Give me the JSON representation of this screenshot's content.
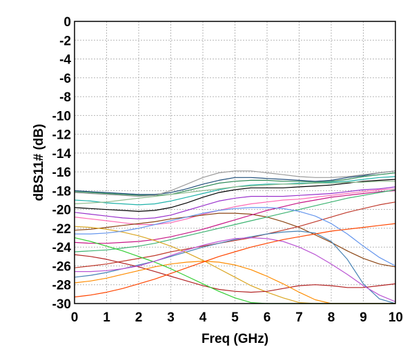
{
  "chart_data": {
    "type": "line",
    "title": "",
    "xlabel": "Freq (GHz)",
    "ylabel": "dBS11# (dB)",
    "xlim": [
      0,
      10
    ],
    "ylim": [
      -30,
      0
    ],
    "x_ticks": [
      "0",
      "1",
      "2",
      "3",
      "4",
      "5",
      "6",
      "7",
      "8",
      "9",
      "10"
    ],
    "y_ticks": [
      "0",
      "-2",
      "-4",
      "-6",
      "-8",
      "-10",
      "-12",
      "-14",
      "-16",
      "-18",
      "-20",
      "-22",
      "-24",
      "-26",
      "-28",
      "-30"
    ],
    "grid": true,
    "legend": "none",
    "x": [
      0,
      0.5,
      1,
      1.5,
      2,
      2.5,
      3,
      3.5,
      4,
      4.5,
      5,
      5.5,
      6,
      6.5,
      7,
      7.5,
      8,
      8.5,
      9,
      9.5,
      10
    ],
    "series": [
      {
        "color": "#1f4e79",
        "values": [
          -18.0,
          -18.1,
          -18.2,
          -18.3,
          -18.4,
          -18.4,
          -18.2,
          -17.8,
          -17.3,
          -16.9,
          -16.6,
          -16.6,
          -16.7,
          -16.8,
          -16.9,
          -17.0,
          -16.9,
          -16.6,
          -16.4,
          -16.1,
          -15.9
        ]
      },
      {
        "color": "#2e8b57",
        "values": [
          -18.1,
          -18.2,
          -18.3,
          -18.4,
          -18.5,
          -18.5,
          -18.4,
          -18.0,
          -17.6,
          -17.2,
          -17.0,
          -16.9,
          -16.9,
          -17.0,
          -17.0,
          -17.1,
          -17.0,
          -16.8,
          -16.5,
          -16.3,
          -16.1
        ]
      },
      {
        "color": "#9a9a9a",
        "values": [
          -18.2,
          -18.3,
          -18.4,
          -18.5,
          -18.6,
          -18.5,
          -18.0,
          -17.3,
          -16.6,
          -16.1,
          -15.9,
          -15.9,
          -16.1,
          -16.3,
          -16.5,
          -16.6,
          -16.6,
          -16.5,
          -16.3,
          -16.1,
          -15.9
        ]
      },
      {
        "color": "#20b2aa",
        "values": [
          -19.0,
          -19.1,
          -19.3,
          -19.4,
          -19.5,
          -19.4,
          -19.1,
          -18.7,
          -18.3,
          -17.9,
          -17.6,
          -17.4,
          -17.3,
          -17.3,
          -17.2,
          -17.2,
          -17.1,
          -17.0,
          -16.8,
          -16.6,
          -16.5
        ]
      },
      {
        "color": "#000000",
        "values": [
          -19.8,
          -19.9,
          -20.0,
          -20.1,
          -20.2,
          -20.1,
          -19.8,
          -19.3,
          -18.7,
          -18.2,
          -17.9,
          -17.7,
          -17.7,
          -17.7,
          -17.6,
          -17.5,
          -17.4,
          -17.2,
          -17.0,
          -16.9,
          -16.8
        ]
      },
      {
        "color": "#9932cc",
        "values": [
          -20.3,
          -20.5,
          -20.7,
          -20.9,
          -21.0,
          -20.9,
          -20.6,
          -20.1,
          -19.6,
          -19.1,
          -18.8,
          -18.6,
          -18.6,
          -18.6,
          -18.5,
          -18.4,
          -18.3,
          -18.1,
          -17.9,
          -17.8,
          -17.6
        ]
      },
      {
        "color": "#ff69b4",
        "values": [
          -20.8,
          -21.0,
          -21.2,
          -21.4,
          -21.6,
          -21.6,
          -21.4,
          -21.0,
          -20.5,
          -20.1,
          -19.7,
          -19.4,
          -19.2,
          -19.0,
          -18.9,
          -18.7,
          -18.5,
          -18.3,
          -18.1,
          -17.9,
          -17.8
        ]
      },
      {
        "color": "#8b4513",
        "values": [
          -22.2,
          -22.1,
          -21.9,
          -21.7,
          -21.5,
          -21.3,
          -21.0,
          -20.8,
          -20.6,
          -20.4,
          -20.4,
          -20.5,
          -20.8,
          -21.3,
          -21.9,
          -22.7,
          -23.5,
          -24.4,
          -25.2,
          -25.8,
          -26.1
        ]
      },
      {
        "color": "#c71585",
        "values": [
          -23.5,
          -23.6,
          -23.6,
          -23.5,
          -23.4,
          -23.2,
          -22.9,
          -22.5,
          -22.1,
          -21.6,
          -21.1,
          -20.6,
          -20.1,
          -19.7,
          -19.3,
          -19.0,
          -18.7,
          -18.5,
          -18.3,
          -18.1,
          -18.0
        ]
      },
      {
        "color": "#3cb371",
        "values": [
          -24.5,
          -24.4,
          -24.3,
          -24.1,
          -23.9,
          -23.6,
          -23.2,
          -22.8,
          -22.4,
          -22.0,
          -21.6,
          -21.2,
          -20.8,
          -20.4,
          -20.0,
          -19.6,
          -19.2,
          -18.8,
          -18.5,
          -18.2,
          -17.9
        ]
      },
      {
        "color": "#c0392b",
        "values": [
          -26.2,
          -26.0,
          -25.8,
          -25.5,
          -25.2,
          -24.9,
          -24.5,
          -24.2,
          -23.9,
          -23.6,
          -23.3,
          -23.0,
          -22.6,
          -22.2,
          -21.8,
          -21.3,
          -20.8,
          -20.3,
          -19.9,
          -19.5,
          -19.2
        ]
      },
      {
        "color": "#4682b4",
        "values": [
          -27.2,
          -27.0,
          -26.7,
          -26.3,
          -25.9,
          -25.5,
          -25.0,
          -24.5,
          -24.0,
          -23.6,
          -23.2,
          -22.9,
          -22.6,
          -22.4,
          -22.3,
          -22.5,
          -23.4,
          -25.3,
          -27.9,
          -29.5,
          -30.0
        ]
      },
      {
        "color": "#daa520",
        "values": [
          -21.8,
          -21.9,
          -22.1,
          -22.4,
          -22.8,
          -23.3,
          -23.9,
          -24.6,
          -25.4,
          -26.3,
          -27.2,
          -28.1,
          -28.8,
          -29.4,
          -29.9,
          -30.0,
          -30.0,
          -30.0,
          -30.0,
          -30.0,
          -30.0
        ]
      },
      {
        "color": "#b22222",
        "values": [
          -24.8,
          -25.0,
          -25.3,
          -25.7,
          -26.1,
          -26.6,
          -27.1,
          -27.6,
          -28.1,
          -28.5,
          -28.7,
          -28.8,
          -28.7,
          -28.4,
          -28.1,
          -28.0,
          -28.1,
          -28.3,
          -28.3,
          -28.1,
          -27.9
        ]
      },
      {
        "color": "#ff8c00",
        "values": [
          -27.8,
          -27.6,
          -27.3,
          -26.9,
          -26.5,
          -26.1,
          -25.8,
          -25.6,
          -25.5,
          -25.6,
          -25.9,
          -26.4,
          -27.1,
          -27.9,
          -28.8,
          -29.6,
          -30.0,
          -30.0,
          -30.0,
          -30.0,
          -30.0
        ]
      },
      {
        "color": "#6495ed",
        "values": [
          -22.6,
          -22.6,
          -22.5,
          -22.3,
          -22.0,
          -21.6,
          -21.2,
          -20.8,
          -20.4,
          -20.1,
          -19.9,
          -19.8,
          -19.8,
          -19.9,
          -20.2,
          -20.7,
          -21.5,
          -22.6,
          -23.9,
          -25.1,
          -26.0
        ]
      },
      {
        "color": "#32cd32",
        "values": [
          -23.0,
          -23.4,
          -23.9,
          -24.4,
          -25.0,
          -25.6,
          -26.3,
          -27.1,
          -27.9,
          -28.7,
          -29.4,
          -29.9,
          -30.0,
          -30.0,
          -30.0,
          -30.0,
          -30.0,
          -30.0,
          -30.0,
          -30.0,
          -30.0
        ]
      },
      {
        "color": "#8fbc8f",
        "values": [
          -19.4,
          -19.3,
          -19.2,
          -19.0,
          -18.8,
          -18.6,
          -18.4,
          -18.2,
          -18.0,
          -17.8,
          -17.6,
          -17.5,
          -17.4,
          -17.3,
          -17.3,
          -17.2,
          -17.2,
          -17.1,
          -17.1,
          -17.0,
          -17.0
        ]
      },
      {
        "color": "#ba55d3",
        "values": [
          -26.6,
          -26.6,
          -26.5,
          -26.3,
          -26.0,
          -25.5,
          -24.9,
          -24.3,
          -23.8,
          -23.4,
          -23.1,
          -23.0,
          -23.1,
          -23.4,
          -24.0,
          -24.8,
          -25.8,
          -26.9,
          -28.1,
          -29.1,
          -29.8
        ]
      },
      {
        "color": "#ff4500",
        "values": [
          -29.3,
          -29.1,
          -28.8,
          -28.4,
          -27.9,
          -27.4,
          -26.8,
          -26.2,
          -25.6,
          -25.0,
          -24.5,
          -24.0,
          -23.6,
          -23.2,
          -22.9,
          -22.6,
          -22.3,
          -22.1,
          -21.9,
          -21.7,
          -21.5
        ]
      }
    ]
  }
}
